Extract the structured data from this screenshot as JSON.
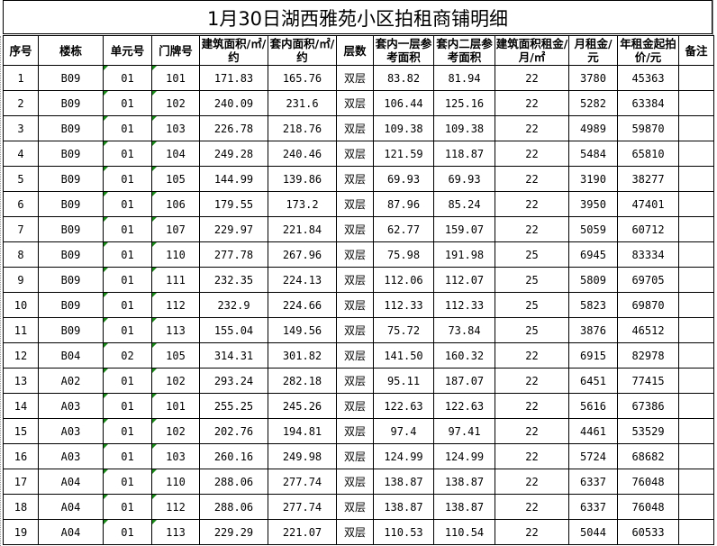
{
  "title": "1月30日湖西雅苑小区拍租商铺明细",
  "headers": [
    "序号",
    "楼栋",
    "单元号",
    "门牌号",
    "建筑面积/㎡/约",
    "套内面积/㎡/约",
    "层数",
    "套内一层参考面积",
    "套内二层参考面积",
    "建筑面积租金/月/㎡",
    "月租金/元",
    "年租金起拍价/元",
    "备注"
  ],
  "rows": [
    [
      "1",
      "B09",
      "01",
      "101",
      "171.83",
      "165.76",
      "双层",
      "83.82",
      "81.94",
      "22",
      "3780",
      "45363",
      ""
    ],
    [
      "2",
      "B09",
      "01",
      "102",
      "240.09",
      "231.6",
      "双层",
      "106.44",
      "125.16",
      "22",
      "5282",
      "63384",
      ""
    ],
    [
      "3",
      "B09",
      "01",
      "103",
      "226.78",
      "218.76",
      "双层",
      "109.38",
      "109.38",
      "22",
      "4989",
      "59870",
      ""
    ],
    [
      "4",
      "B09",
      "01",
      "104",
      "249.28",
      "240.46",
      "双层",
      "121.59",
      "118.87",
      "22",
      "5484",
      "65810",
      ""
    ],
    [
      "5",
      "B09",
      "01",
      "105",
      "144.99",
      "139.86",
      "双层",
      "69.93",
      "69.93",
      "22",
      "3190",
      "38277",
      ""
    ],
    [
      "6",
      "B09",
      "01",
      "106",
      "179.55",
      "173.2",
      "双层",
      "87.96",
      "85.24",
      "22",
      "3950",
      "47401",
      ""
    ],
    [
      "7",
      "B09",
      "01",
      "107",
      "229.97",
      "221.84",
      "双层",
      "62.77",
      "159.07",
      "22",
      "5059",
      "60712",
      ""
    ],
    [
      "8",
      "B09",
      "01",
      "110",
      "277.78",
      "267.96",
      "双层",
      "75.98",
      "191.98",
      "25",
      "6945",
      "83334",
      ""
    ],
    [
      "9",
      "B09",
      "01",
      "111",
      "232.35",
      "224.13",
      "双层",
      "112.06",
      "112.07",
      "25",
      "5809",
      "69705",
      ""
    ],
    [
      "10",
      "B09",
      "01",
      "112",
      "232.9",
      "224.66",
      "双层",
      "112.33",
      "112.33",
      "25",
      "5823",
      "69870",
      ""
    ],
    [
      "11",
      "B09",
      "01",
      "113",
      "155.04",
      "149.56",
      "双层",
      "75.72",
      "73.84",
      "25",
      "3876",
      "46512",
      ""
    ],
    [
      "12",
      "B04",
      "02",
      "105",
      "314.31",
      "301.82",
      "双层",
      "141.50",
      "160.32",
      "22",
      "6915",
      "82978",
      ""
    ],
    [
      "13",
      "A02",
      "01",
      "102",
      "293.24",
      "282.18",
      "双层",
      "95.11",
      "187.07",
      "22",
      "6451",
      "77415",
      ""
    ],
    [
      "14",
      "A03",
      "01",
      "101",
      "255.25",
      "245.26",
      "双层",
      "122.63",
      "122.63",
      "22",
      "5616",
      "67386",
      ""
    ],
    [
      "15",
      "A03",
      "01",
      "102",
      "202.76",
      "194.81",
      "双层",
      "97.4",
      "97.41",
      "22",
      "4461",
      "53529",
      ""
    ],
    [
      "16",
      "A03",
      "01",
      "103",
      "260.16",
      "249.98",
      "双层",
      "124.99",
      "124.99",
      "22",
      "5724",
      "68682",
      ""
    ],
    [
      "17",
      "A04",
      "01",
      "110",
      "288.06",
      "277.74",
      "双层",
      "138.87",
      "138.87",
      "22",
      "6337",
      "76048",
      ""
    ],
    [
      "18",
      "A04",
      "01",
      "112",
      "288.06",
      "277.74",
      "双层",
      "138.87",
      "138.87",
      "22",
      "6337",
      "76048",
      ""
    ],
    [
      "19",
      "A04",
      "01",
      "113",
      "229.29",
      "221.07",
      "双层",
      "110.53",
      "110.54",
      "22",
      "5044",
      "60533",
      ""
    ]
  ],
  "colors": {
    "grid": "#000000",
    "note_marker": "#1a8a1a"
  }
}
